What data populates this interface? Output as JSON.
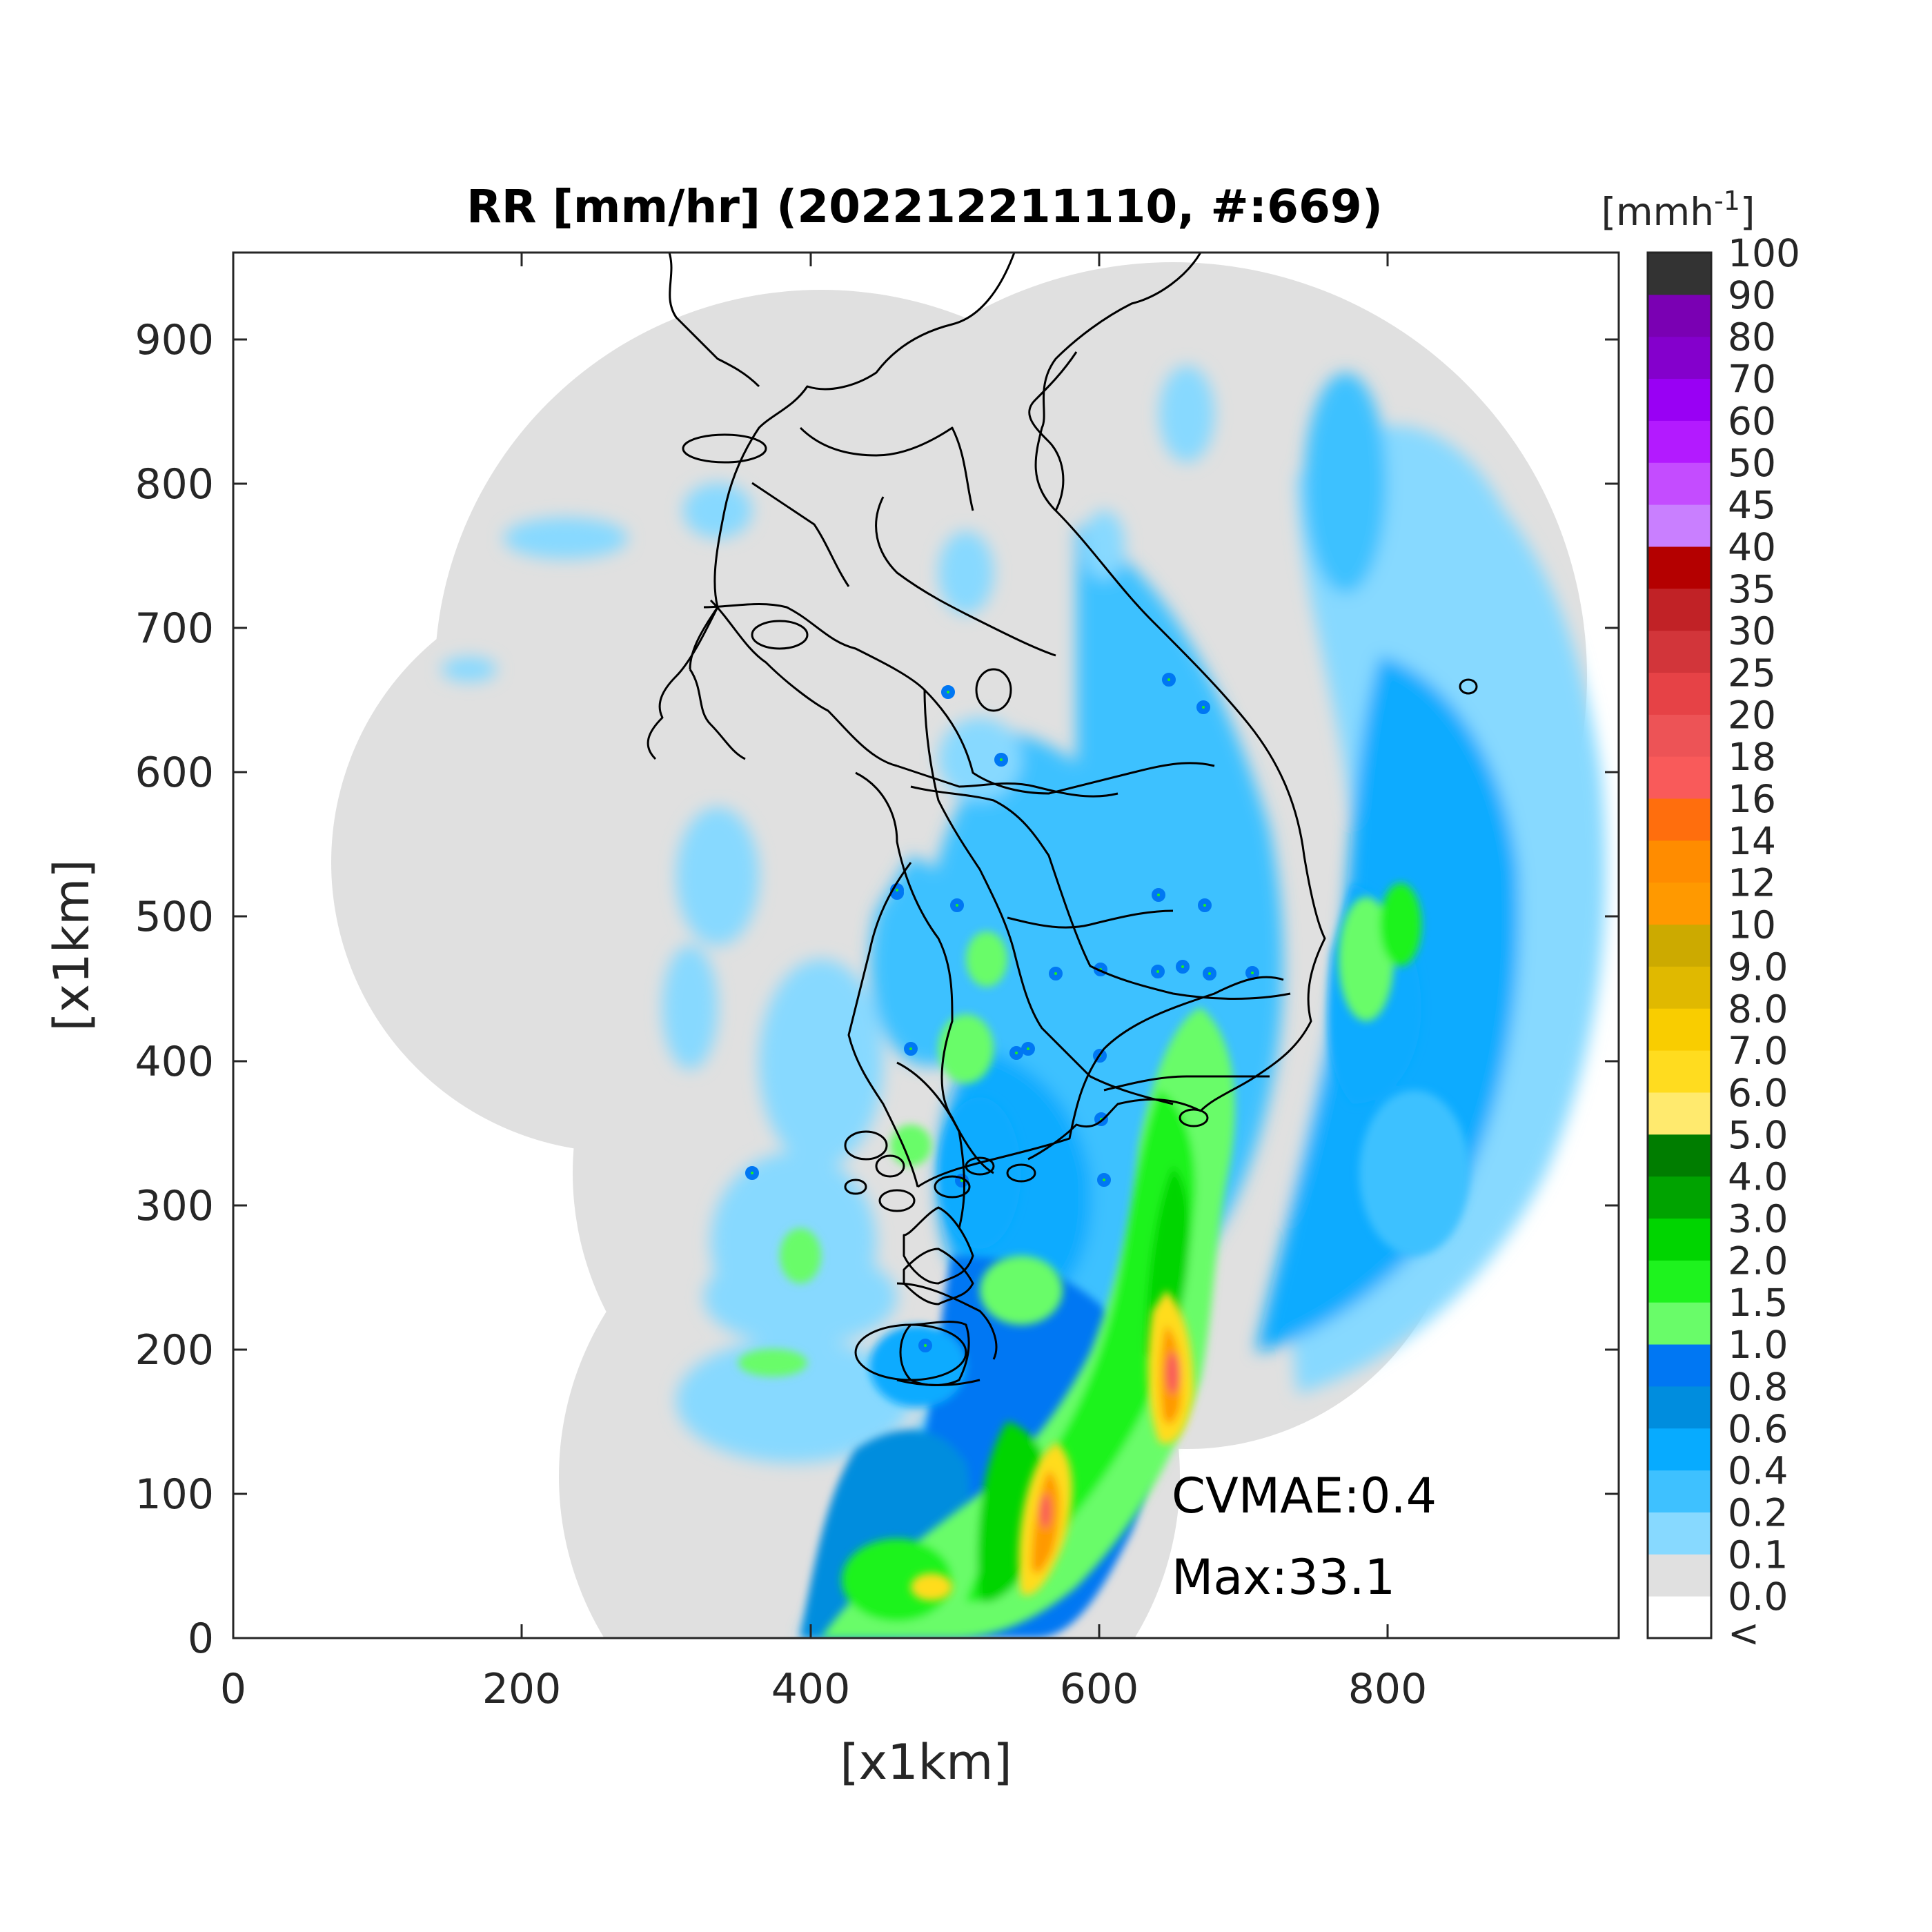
{
  "title": "RR [mm/hr] (202212211110, #:669)",
  "xlabel": "[x1km]",
  "ylabel": "[x1km]",
  "x_ticks": [
    "0",
    "200",
    "400",
    "600",
    "800"
  ],
  "y_ticks": [
    "0",
    "100",
    "200",
    "300",
    "400",
    "500",
    "600",
    "700",
    "800",
    "900"
  ],
  "colorbar": {
    "unit_base": "[mmh",
    "unit_exp": "-1",
    "unit_close": "]",
    "under_label": "<",
    "labels": [
      "0.0",
      "0.1",
      "0.2",
      "0.4",
      "0.6",
      "0.8",
      "1.0",
      "1.5",
      "2.0",
      "3.0",
      "4.0",
      "5.0",
      "6.0",
      "7.0",
      "8.0",
      "9.0",
      "10",
      "12",
      "14",
      "16",
      "18",
      "20",
      "25",
      "30",
      "35",
      "40",
      "45",
      "50",
      "60",
      "70",
      "80",
      "90",
      "100"
    ],
    "colors": [
      "#ffffff",
      "#e0e0e0",
      "#87d9ff",
      "#3ec1ff",
      "#07abff",
      "#008dde",
      "#0077f3",
      "#69fc69",
      "#1ef31e",
      "#00d500",
      "#00a300",
      "#007d00",
      "#ffea6e",
      "#ffdc1f",
      "#f9cd00",
      "#e0b900",
      "#ccaa00",
      "#ff9900",
      "#ff8c00",
      "#ff6e0d",
      "#f95a5a",
      "#ed5356",
      "#e64246",
      "#d2353a",
      "#c12226",
      "#b40000",
      "#c97fff",
      "#c44cff",
      "#b31aff",
      "#9900f4",
      "#8400cc",
      "#7a00b3",
      "#333333"
    ]
  },
  "chart_data": {
    "type": "heatmap",
    "title": "RR [mm/hr] (202212211110, #:669)",
    "xlabel": "[x1km]",
    "ylabel": "[x1km]",
    "xlim": [
      0,
      960
    ],
    "ylim": [
      0,
      960
    ],
    "colorbar_unit": "mmh^-1",
    "annotations": [
      "CVMAE:0.4",
      "Max:33.1"
    ],
    "max_value": 33.1,
    "cvmae": 0.4
  },
  "annotation": {
    "cvmae": "CVMAE:0.4",
    "max": "Max:33.1"
  }
}
